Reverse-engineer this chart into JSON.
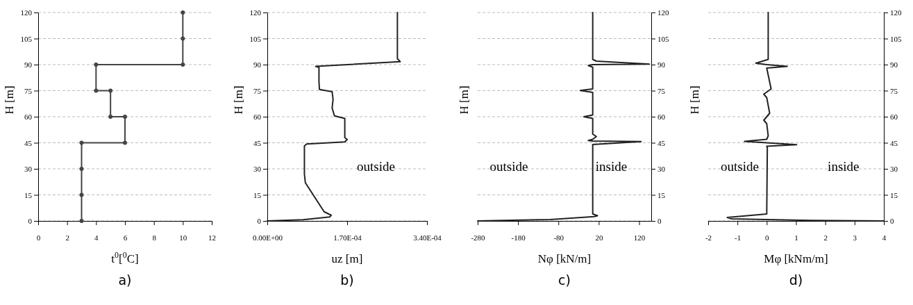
{
  "chart_data": [
    {
      "type": "line",
      "title": "a)",
      "xlabel": "t$^{0}$[$^{0}$C]",
      "ylabel": "H  [m]",
      "xlim": [
        0,
        12
      ],
      "xticks": [
        0,
        2,
        4,
        6,
        8,
        10,
        12
      ],
      "ylim": [
        0,
        120
      ],
      "yticks": [
        0,
        15,
        30,
        45,
        60,
        75,
        90,
        105,
        120
      ],
      "grid": "y",
      "marker": "circle",
      "series": [
        {
          "color": "#444444",
          "x": [
            3,
            3,
            3,
            3,
            6,
            6,
            5,
            5,
            4,
            4,
            10,
            10,
            10
          ],
          "values": [
            0,
            15,
            30,
            45,
            45,
            60,
            60,
            75,
            75,
            90,
            90,
            105,
            120
          ]
        }
      ]
    },
    {
      "type": "line",
      "title": "b)",
      "xlabel": "uz  [m]",
      "ylabel": "H  [m]",
      "xlim": [
        0,
        0.00034
      ],
      "xticks": [
        {
          "value": 0,
          "label": "0.00E+00"
        },
        {
          "value": 0.00017,
          "label": "1.70E-04"
        },
        {
          "value": 0.00034,
          "label": "3.40E-04"
        }
      ],
      "ylim": [
        0,
        120
      ],
      "yticks": [
        0,
        15,
        30,
        45,
        60,
        75,
        90,
        105,
        120
      ],
      "grid": "y",
      "annotations": [
        "outside"
      ],
      "series": [
        {
          "color": "#222222",
          "x": [
            0,
            7.6e-05,
            0.000133,
            0.000136,
            0.000121,
            8.1e-05,
            7.9e-05,
            7.9e-05,
            8.4e-05,
            0.000165,
            0.00017,
            0.000165,
            0.000165,
            0.000143,
            0.000138,
            0.00014,
            0.000138,
            0.000111,
            0.00011,
            0.00011,
            0.000103,
            0.000283,
            0.000277,
            0.000277
          ],
          "values": [
            0,
            0.7,
            2.3,
            3.3,
            5.3,
            22,
            27,
            43.2,
            44.3,
            45.5,
            46.9,
            48,
            59,
            60.5,
            65,
            70,
            74.4,
            75.7,
            80,
            88.4,
            89,
            91.7,
            93.4,
            120
          ]
        }
      ]
    },
    {
      "type": "line",
      "title": "c)",
      "xlabel": "Nφ [kN/m]",
      "ylabel": "H  [m]",
      "xlim": [
        -280,
        150
      ],
      "xticks": [
        -280,
        -180,
        -80,
        20,
        120
      ],
      "ylim": [
        0,
        120
      ],
      "yticks": [
        0,
        15,
        30,
        45,
        60,
        75,
        90,
        105,
        120
      ],
      "grid": "y",
      "annotations": [
        "outside",
        "inside"
      ],
      "series": [
        {
          "color": "#222222",
          "x": [
            -280,
            -100,
            9,
            17,
            5,
            5,
            125,
            5,
            -6,
            5,
            14,
            5,
            5,
            -17,
            5,
            5,
            -26,
            5,
            5,
            -6,
            5,
            145,
            14,
            5,
            5
          ],
          "values": [
            0,
            0.8,
            2.5,
            3,
            4,
            44,
            45.7,
            46,
            46.3,
            47,
            48.6,
            50,
            59,
            60,
            61,
            74,
            75.1,
            76,
            88.5,
            89.5,
            90,
            90.3,
            92,
            93,
            120
          ]
        }
      ]
    },
    {
      "type": "line",
      "title": "d)",
      "xlabel": "Mφ [kNm/m]",
      "ylabel": "H  [m]",
      "xlim": [
        -2,
        4
      ],
      "xticks": [
        -2,
        -1,
        0,
        1,
        2,
        3,
        4
      ],
      "ylim": [
        0,
        120
      ],
      "yticks": [
        0,
        15,
        30,
        45,
        60,
        75,
        90,
        105,
        120
      ],
      "grid": "y",
      "annotations": [
        "outside",
        "inside"
      ],
      "series": [
        {
          "color": "#222222",
          "x": [
            4,
            1.5,
            -1.2,
            -1.35,
            0,
            0.02,
            0,
            1.02,
            0,
            -0.76,
            0,
            0.05,
            0,
            -0.1,
            0.1,
            0,
            -0.1,
            0.15,
            0,
            0.7,
            0,
            -0.37,
            0.05,
            0.05,
            0.05
          ],
          "values": [
            0,
            0.3,
            1.2,
            2,
            4,
            42,
            43,
            43.9,
            45,
            45.8,
            47,
            49,
            56,
            58,
            62,
            71,
            73,
            76,
            88,
            89,
            90,
            90.8,
            93,
            100,
            120
          ]
        }
      ]
    }
  ]
}
